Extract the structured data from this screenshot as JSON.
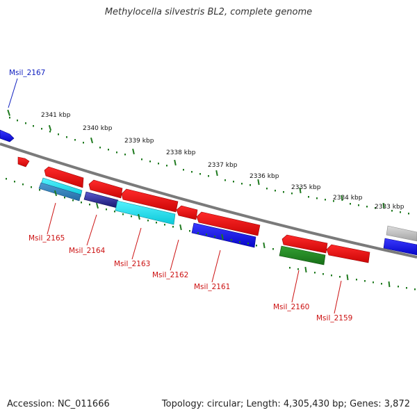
{
  "title": "Methylocella silvestris BL2, complete genome",
  "footer": {
    "accession": "Accession: NC_011666",
    "summary": "Topology: circular; Length: 4,305,430 bp; Genes: 3,872"
  },
  "colors": {
    "backbone": "#7a7a7a",
    "tick": "#1f7a1f",
    "label_forward": "#1020c0",
    "label_reverse": "#cc1111"
  },
  "scale_labels": [
    "2341 kbp",
    "2340 kbp",
    "2339 kbp",
    "2338 kbp",
    "2337 kbp",
    "2336 kbp",
    "2335 kbp",
    "2334 kbp",
    "2333 kbp"
  ],
  "genes": [
    {
      "name": "Msil_2167",
      "strand": "forward"
    },
    {
      "name": "Msil_2165",
      "strand": "reverse"
    },
    {
      "name": "Msil_2164",
      "strand": "reverse"
    },
    {
      "name": "Msil_2163",
      "strand": "reverse"
    },
    {
      "name": "Msil_2162",
      "strand": "reverse"
    },
    {
      "name": "Msil_2161",
      "strand": "reverse"
    },
    {
      "name": "Msil_2160",
      "strand": "reverse"
    },
    {
      "name": "Msil_2159",
      "strand": "reverse"
    }
  ],
  "features": [
    {
      "name": "forward-feature",
      "color": "#1010ee"
    },
    {
      "name": "cds-feature",
      "color": "#ee1111"
    },
    {
      "name": "trna-feature",
      "color": "#22dde8"
    },
    {
      "name": "misc-feature",
      "color": "#2d7fb4"
    },
    {
      "name": "repeat-feature",
      "color": "#23238c"
    },
    {
      "name": "rrna-feature",
      "color": "#1d8a1d"
    },
    {
      "name": "pseudo-feature",
      "color": "#bbbbbb"
    }
  ]
}
